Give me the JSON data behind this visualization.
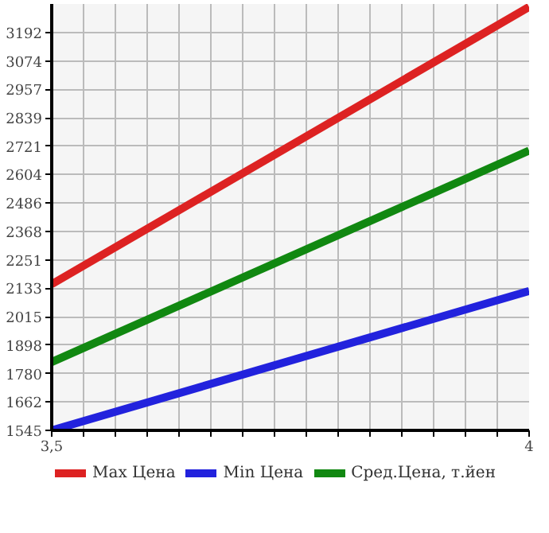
{
  "chart_data": {
    "type": "line",
    "x": [
      3.5,
      4
    ],
    "series": [
      {
        "name": "Max Цена",
        "color": "#dd2222",
        "values": [
          2150,
          3298
        ]
      },
      {
        "name": "Min Цена",
        "color": "#2222dd",
        "values": [
          1545,
          2122
        ]
      },
      {
        "name": "Сред.Цена, т.йен",
        "color": "#118811",
        "values": [
          1828,
          2703
        ]
      }
    ],
    "xlim": [
      3.5,
      4
    ],
    "ylim": [
      1545,
      3310
    ],
    "xticks": [
      {
        "value": 3.5,
        "label": "3,5"
      },
      {
        "value": 3.5333,
        "label": null
      },
      {
        "value": 3.5667,
        "label": null
      },
      {
        "value": 3.6,
        "label": null
      },
      {
        "value": 3.6333,
        "label": null
      },
      {
        "value": 3.6667,
        "label": null
      },
      {
        "value": 3.7,
        "label": null
      },
      {
        "value": 3.7333,
        "label": null
      },
      {
        "value": 3.7667,
        "label": null
      },
      {
        "value": 3.8,
        "label": null
      },
      {
        "value": 3.8333,
        "label": null
      },
      {
        "value": 3.8667,
        "label": null
      },
      {
        "value": 3.9,
        "label": null
      },
      {
        "value": 3.9333,
        "label": null
      },
      {
        "value": 3.9667,
        "label": null
      },
      4
    ],
    "yticks": [
      1545,
      1662,
      1780,
      1898,
      2015,
      2133,
      2251,
      2368,
      2486,
      2604,
      2721,
      2839,
      2957,
      3074,
      3192
    ],
    "grid": true,
    "legend": "bottom",
    "marker": "none",
    "line_style": "solid"
  }
}
